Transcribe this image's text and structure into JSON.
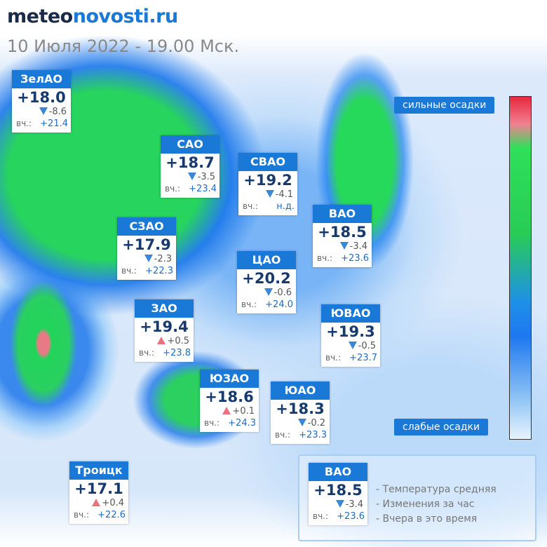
{
  "header": {
    "logo_prefix": "meteo",
    "logo_suffix": "novosti.ru",
    "subtitle": "10 Июля 2022 - 19.00 Мск."
  },
  "scale": {
    "top": "сильные осадки",
    "bottom": "слабые осадки"
  },
  "yesterday_label": "вч.:",
  "districts": [
    {
      "name": "ЗелАО",
      "temp": "+18.0",
      "trend": "down",
      "change": "-8.6",
      "yesterday": "+21.4"
    },
    {
      "name": "САО",
      "temp": "+18.7",
      "trend": "down",
      "change": "-3.5",
      "yesterday": "+23.4"
    },
    {
      "name": "СВАО",
      "temp": "+19.2",
      "trend": "down",
      "change": "-4.1",
      "yesterday": "н.д."
    },
    {
      "name": "ВАО",
      "temp": "+18.5",
      "trend": "down",
      "change": "-3.4",
      "yesterday": "+23.6"
    },
    {
      "name": "СЗАО",
      "temp": "+17.9",
      "trend": "down",
      "change": "-2.3",
      "yesterday": "+22.3"
    },
    {
      "name": "ЦАО",
      "temp": "+20.2",
      "trend": "down",
      "change": "-0.6",
      "yesterday": "+24.0"
    },
    {
      "name": "ЗАО",
      "temp": "+19.4",
      "trend": "up",
      "change": "+0.5",
      "yesterday": "+23.8"
    },
    {
      "name": "ЮВАО",
      "temp": "+19.3",
      "trend": "down",
      "change": "-0.5",
      "yesterday": "+23.7"
    },
    {
      "name": "ЮЗАО",
      "temp": "+18.6",
      "trend": "up",
      "change": "+0.1",
      "yesterday": "+24.3"
    },
    {
      "name": "ЮАО",
      "temp": "+18.3",
      "trend": "down",
      "change": "-0.2",
      "yesterday": "+23.3"
    },
    {
      "name": "Троицк",
      "temp": "+17.1",
      "trend": "up",
      "change": "+0.4",
      "yesterday": "+22.6"
    }
  ],
  "legend": {
    "example": {
      "name": "ВАО",
      "temp": "+18.5",
      "trend": "down",
      "change": "-3.4",
      "yesterday": "+23.6"
    },
    "items": [
      "- Температура средняя",
      "- Изменения за час",
      "- Вчера в это время"
    ]
  }
}
